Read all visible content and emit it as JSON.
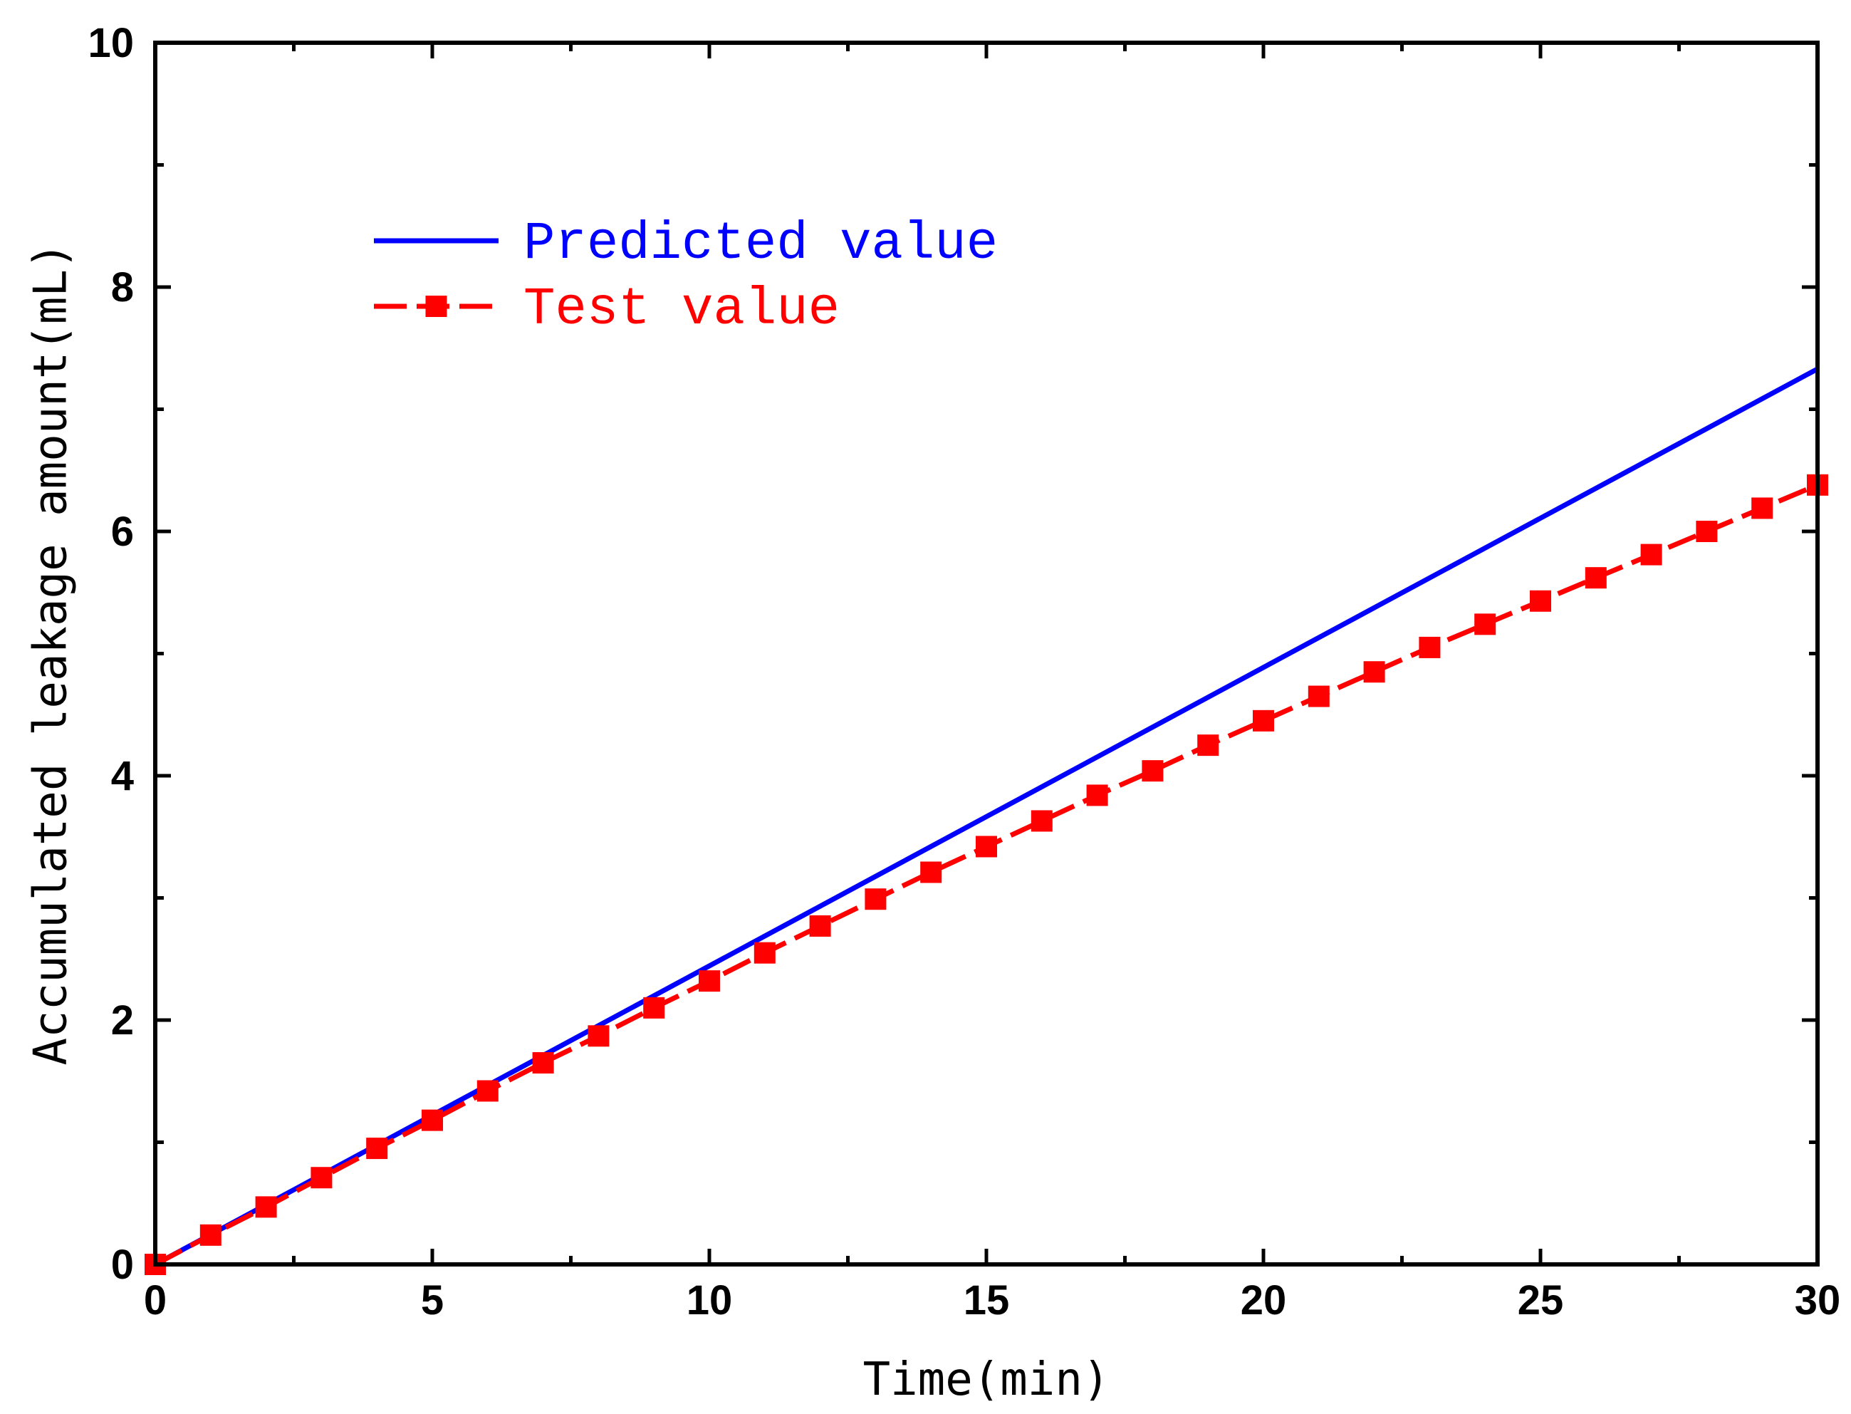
{
  "chart_data": {
    "type": "line",
    "title": "",
    "xlabel": "Time(min)",
    "ylabel": "Accumulated leakage amount(mL)",
    "xlim": [
      0,
      30
    ],
    "ylim": [
      0,
      10
    ],
    "x_ticks": [
      0,
      5,
      10,
      15,
      20,
      25,
      30
    ],
    "y_ticks": [
      0,
      2,
      4,
      6,
      8,
      10
    ],
    "x_minor_step": 2.5,
    "y_minor_step": 1,
    "grid": false,
    "legend_position": "upper-left",
    "series": [
      {
        "name": "Predicted value",
        "color": "#0000ff",
        "style": "solid",
        "marker": "none",
        "x": [
          0,
          30
        ],
        "y": [
          0,
          7.33
        ]
      },
      {
        "name": "Test value",
        "color": "#ff0000",
        "style": "dashed",
        "marker": "square",
        "x": [
          0,
          1,
          2,
          3,
          4,
          5,
          6,
          7,
          8,
          9,
          10,
          11,
          12,
          13,
          14,
          15,
          16,
          17,
          18,
          19,
          20,
          21,
          22,
          23,
          24,
          25,
          26,
          27,
          28,
          29,
          30
        ],
        "y": [
          0.0,
          0.24,
          0.47,
          0.71,
          0.95,
          1.18,
          1.42,
          1.65,
          1.87,
          2.1,
          2.32,
          2.55,
          2.77,
          2.99,
          3.21,
          3.42,
          3.63,
          3.84,
          4.04,
          4.25,
          4.45,
          4.65,
          4.85,
          5.05,
          5.24,
          5.43,
          5.62,
          5.81,
          6.0,
          6.19,
          6.38
        ]
      }
    ]
  }
}
